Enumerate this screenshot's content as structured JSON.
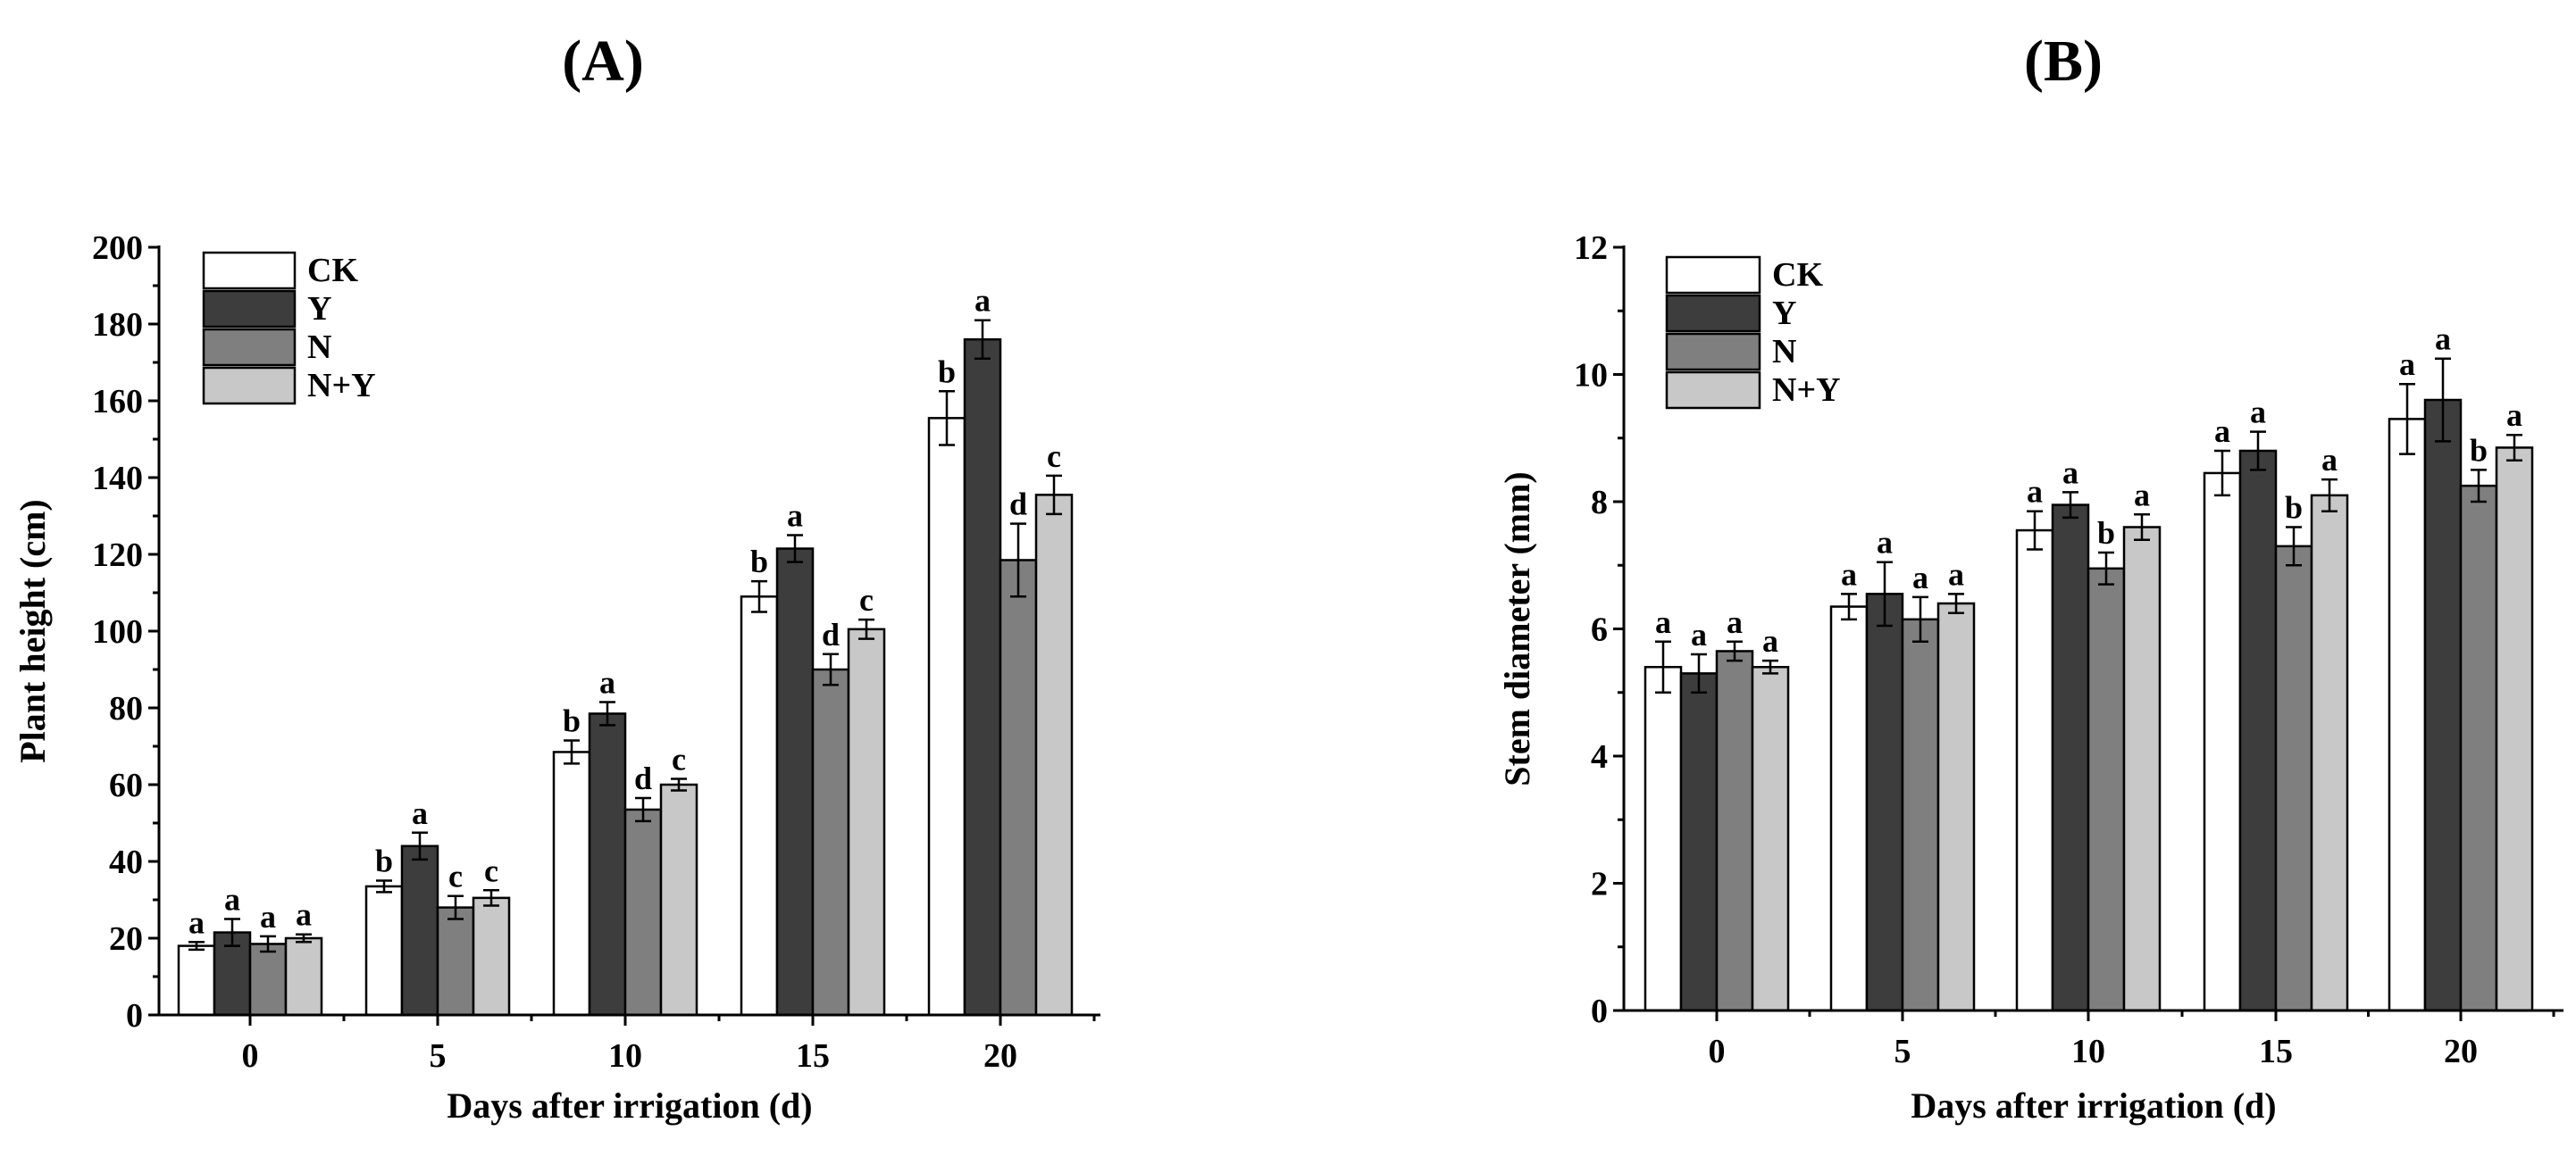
{
  "chart_data": [
    {
      "type": "bar",
      "panel_label": "(A)",
      "xlabel": "Days after irrigation (d)",
      "ylabel": "Plant height (cm)",
      "ylim": [
        0,
        200
      ],
      "yticks": [
        "0",
        "20",
        "40",
        "60",
        "80",
        "100",
        "120",
        "140",
        "160",
        "180",
        "200"
      ],
      "categories": [
        "0",
        "5",
        "10",
        "15",
        "20"
      ],
      "legend_position": "top-left",
      "series": [
        {
          "name": "CK",
          "color": "#ffffff",
          "values": [
            18,
            33.5,
            68.5,
            109,
            155.5
          ],
          "errors": [
            1,
            1.5,
            3,
            4,
            7
          ],
          "letters": [
            "a",
            "b",
            "b",
            "b",
            "b"
          ]
        },
        {
          "name": "Y",
          "color": "#3d3d3d",
          "values": [
            21.5,
            44,
            78.5,
            121.5,
            176
          ],
          "errors": [
            3.5,
            3.5,
            3,
            3.5,
            5
          ],
          "letters": [
            "a",
            "a",
            "a",
            "a",
            "a"
          ]
        },
        {
          "name": "N",
          "color": "#7f7f7f",
          "values": [
            18.5,
            28,
            53.5,
            90,
            118.5
          ],
          "errors": [
            2,
            3,
            3,
            4,
            9.5
          ],
          "letters": [
            "a",
            "c",
            "d",
            "d",
            "d"
          ]
        },
        {
          "name": "N+Y",
          "color": "#c8c8c8",
          "values": [
            20,
            30.5,
            60,
            100.5,
            135.5
          ],
          "errors": [
            1,
            2,
            1.5,
            2.5,
            5
          ],
          "letters": [
            "a",
            "c",
            "c",
            "c",
            "c"
          ]
        }
      ]
    },
    {
      "type": "bar",
      "panel_label": "(B)",
      "xlabel": "Days after irrigation (d)",
      "ylabel": "Stem diameter (mm)",
      "ylim": [
        0,
        12
      ],
      "yticks": [
        "0",
        "2",
        "4",
        "6",
        "8",
        "10",
        "12"
      ],
      "categories": [
        "0",
        "5",
        "10",
        "15",
        "20"
      ],
      "legend_position": "top-left",
      "series": [
        {
          "name": "CK",
          "color": "#ffffff",
          "values": [
            5.4,
            6.35,
            7.55,
            8.45,
            9.3
          ],
          "errors": [
            0.4,
            0.2,
            0.3,
            0.35,
            0.55
          ],
          "letters": [
            "a",
            "a",
            "a",
            "a",
            "a"
          ]
        },
        {
          "name": "Y",
          "color": "#3d3d3d",
          "values": [
            5.3,
            6.55,
            7.95,
            8.8,
            9.6
          ],
          "errors": [
            0.3,
            0.5,
            0.2,
            0.3,
            0.65
          ],
          "letters": [
            "a",
            "a",
            "a",
            "a",
            "a"
          ]
        },
        {
          "name": "N",
          "color": "#7f7f7f",
          "values": [
            5.65,
            6.15,
            6.95,
            7.3,
            8.25
          ],
          "errors": [
            0.15,
            0.35,
            0.25,
            0.3,
            0.25
          ],
          "letters": [
            "a",
            "a",
            "b",
            "b",
            "b"
          ]
        },
        {
          "name": "N+Y",
          "color": "#c8c8c8",
          "values": [
            5.4,
            6.4,
            7.6,
            8.1,
            8.85
          ],
          "errors": [
            0.1,
            0.15,
            0.2,
            0.25,
            0.2
          ],
          "letters": [
            "a",
            "a",
            "a",
            "a",
            "a"
          ]
        }
      ]
    }
  ]
}
